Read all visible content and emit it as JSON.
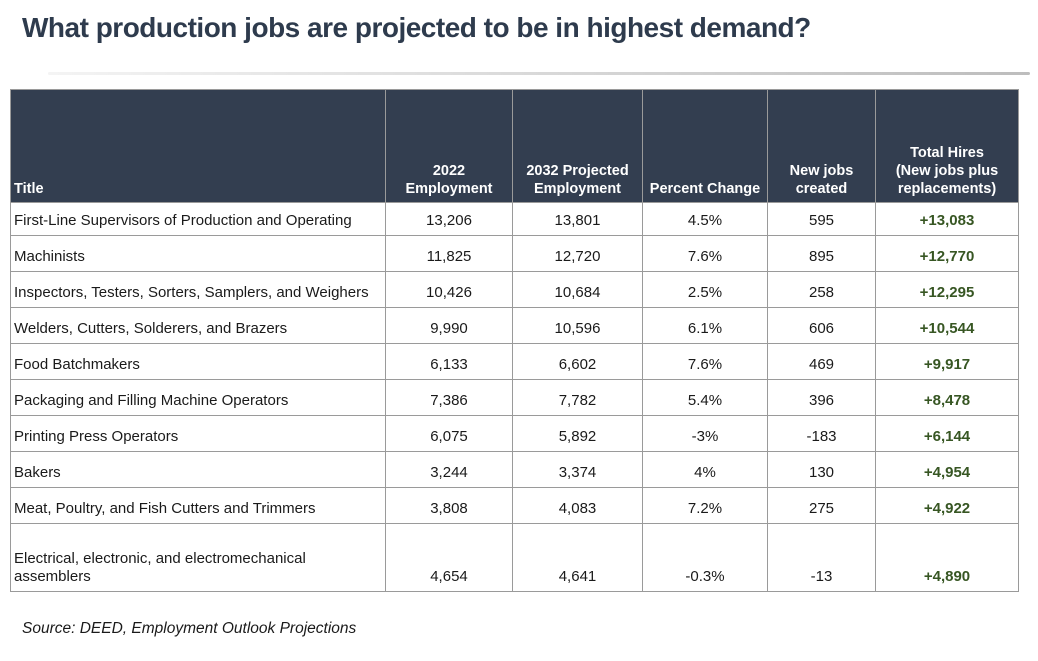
{
  "header": {
    "title": "What production jobs are projected to be in highest demand?"
  },
  "footer": {
    "source_note": "Source: DEED, Employment Outlook Projections"
  },
  "colors": {
    "title_text": "#2E3B4D",
    "table_header_bg": "#333E50",
    "table_header_text": "#FFFFFF",
    "grid_line": "#9A9A9A",
    "total_hires_green": "#375623",
    "body_text": "#1A1A1A"
  },
  "chart_data": {
    "type": "table",
    "title": "What production jobs are projected to be in highest demand?",
    "source": "Source: DEED, Employment Outlook Projections",
    "columns": [
      "Title",
      "2022\nEmployment",
      "2032 Projected\nEmployment",
      "Percent Change",
      "New jobs\ncreated",
      "Total Hires\n(New jobs plus\nreplacements)"
    ],
    "rows": [
      [
        "First-Line Supervisors of Production and Operating",
        "13,206",
        "13,801",
        "4.5%",
        "595",
        "+13,083"
      ],
      [
        "Machinists",
        "11,825",
        "12,720",
        "7.6%",
        "895",
        "+12,770"
      ],
      [
        "Inspectors, Testers, Sorters, Samplers, and Weighers",
        "10,426",
        "10,684",
        "2.5%",
        "258",
        "+12,295"
      ],
      [
        "Welders, Cutters, Solderers, and Brazers",
        "9,990",
        "10,596",
        "6.1%",
        "606",
        "+10,544"
      ],
      [
        "Food Batchmakers",
        "6,133",
        "6,602",
        "7.6%",
        "469",
        "+9,917"
      ],
      [
        "Packaging and Filling Machine Operators",
        "7,386",
        "7,782",
        "5.4%",
        "396",
        "+8,478"
      ],
      [
        "Printing Press Operators",
        "6,075",
        "5,892",
        "-3%",
        "-183",
        "+6,144"
      ],
      [
        "Bakers",
        "3,244",
        "3,374",
        "4%",
        "130",
        "+4,954"
      ],
      [
        "Meat, Poultry, and Fish Cutters and Trimmers",
        "3,808",
        "4,083",
        "7.2%",
        "275",
        "+4,922"
      ],
      [
        "Electrical, electronic, and electromechanical assemblers",
        "4,654",
        "4,641",
        "-0.3%",
        "-13",
        "+4,890"
      ]
    ]
  }
}
